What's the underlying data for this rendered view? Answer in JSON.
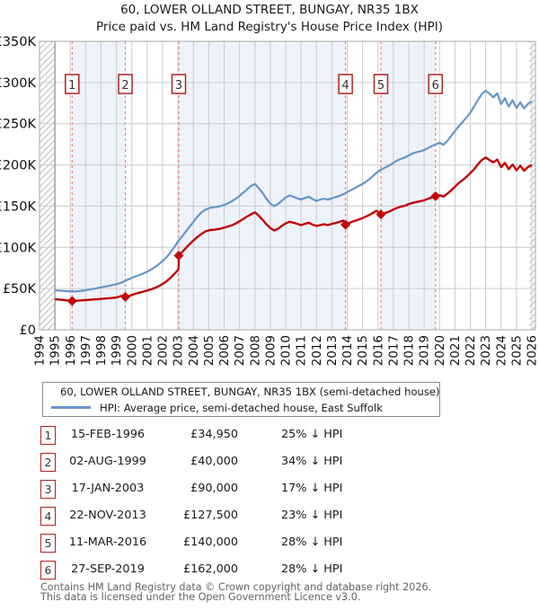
{
  "title": {
    "line1": "60, LOWER OLLAND STREET, BUNGAY, NR35 1BX",
    "line2": "Price paid vs. HM Land Registry's House Price Index (HPI)"
  },
  "legend": {
    "items": [
      {
        "label": "60, LOWER OLLAND STREET, BUNGAY, NR35 1BX (semi-detached house)",
        "color": "#c00505"
      },
      {
        "label": "HPI: Average price, semi-detached house, East Suffolk",
        "color": "#6695c8"
      }
    ]
  },
  "footer": {
    "line1": "Contains HM Land Registry data © Crown copyright and database right 2026.",
    "line2": "This data is licensed under the Open Government Licence v3.0."
  },
  "chart_data": {
    "type": "line",
    "title": "60, LOWER OLLAND STREET, BUNGAY, NR35 1BX — Price paid vs. HM Land Registry's House Price Index (HPI)",
    "x_axis": {
      "start_year": 1994,
      "end_year": 2026,
      "tick_interval": 1,
      "label_rotation": -90
    },
    "y_axis": {
      "min": 0,
      "max": 350000,
      "tick_step": 50000,
      "tick_labels": [
        "£0",
        "£50K",
        "£100K",
        "£150K",
        "£200K",
        "£250K",
        "£300K",
        "£350K"
      ]
    },
    "y_unit": "GBP thousands",
    "grid": true,
    "no_data_hatch_years": {
      "left_end": 1995.0,
      "right_start": 2025.85
    },
    "shaded_band_sale_pairs": [
      [
        1,
        2
      ],
      [
        3,
        4
      ],
      [
        5,
        6
      ]
    ],
    "colors": {
      "property_line": "#c00505",
      "hpi_line": "#6695c8",
      "sale_dash_line": "#f08080",
      "band_fill": "#eef2fb",
      "grid_line": "#cccccc",
      "plot_border": "#aaaaaa",
      "hatch_line": "#bbbbbb",
      "data_start_line": "#808080",
      "num_box_border": "#b22222",
      "num_box_text": "#333333"
    },
    "sales": [
      {
        "n": 1,
        "date": "15-FEB-1996",
        "year": 1996.12,
        "price": 34950,
        "price_label": "£34,950",
        "pct_label": "25% ↓ HPI"
      },
      {
        "n": 2,
        "date": "02-AUG-1999",
        "year": 1999.58,
        "price": 40000,
        "price_label": "£40,000",
        "pct_label": "34% ↓ HPI"
      },
      {
        "n": 3,
        "date": "17-JAN-2003",
        "year": 2003.05,
        "price": 90000,
        "price_label": "£90,000",
        "pct_label": "17% ↓ HPI"
      },
      {
        "n": 4,
        "date": "22-NOV-2013",
        "year": 2013.89,
        "price": 127500,
        "price_label": "£127,500",
        "pct_label": "23% ↓ HPI"
      },
      {
        "n": 5,
        "date": "11-MAR-2016",
        "year": 2016.19,
        "price": 140000,
        "price_label": "£140,000",
        "pct_label": "28% ↓ HPI"
      },
      {
        "n": 6,
        "date": "27-SEP-2019",
        "year": 2019.74,
        "price": 162000,
        "price_label": "£162,000",
        "pct_label": "28% ↓ HPI"
      }
    ],
    "series": [
      {
        "name": "HPI: Average price, semi-detached house, East Suffolk",
        "points": [
          [
            1995.0,
            48
          ],
          [
            1995.25,
            47.6
          ],
          [
            1995.5,
            47.2
          ],
          [
            1995.75,
            46.9
          ],
          [
            1996.0,
            46.6
          ],
          [
            1996.25,
            46.4
          ],
          [
            1996.5,
            46.8
          ],
          [
            1996.75,
            47.3
          ],
          [
            1997.0,
            48.0
          ],
          [
            1997.25,
            48.8
          ],
          [
            1997.5,
            49.6
          ],
          [
            1997.75,
            50.5
          ],
          [
            1998.0,
            51.5
          ],
          [
            1998.25,
            52.4
          ],
          [
            1998.5,
            53.2
          ],
          [
            1998.75,
            54.2
          ],
          [
            1999.0,
            55.3
          ],
          [
            1999.25,
            56.7
          ],
          [
            1999.5,
            58.5
          ],
          [
            1999.75,
            61.0
          ],
          [
            2000.0,
            63.0
          ],
          [
            2000.25,
            64.8
          ],
          [
            2000.5,
            66.5
          ],
          [
            2000.75,
            68.3
          ],
          [
            2001.0,
            70.5
          ],
          [
            2001.25,
            73.0
          ],
          [
            2001.5,
            76.0
          ],
          [
            2001.75,
            79.5
          ],
          [
            2002.0,
            83.5
          ],
          [
            2002.25,
            88.0
          ],
          [
            2002.5,
            93.5
          ],
          [
            2002.75,
            100.0
          ],
          [
            2003.0,
            107.0
          ],
          [
            2003.25,
            113.0
          ],
          [
            2003.5,
            119.0
          ],
          [
            2003.75,
            125.0
          ],
          [
            2004.0,
            131.0
          ],
          [
            2004.25,
            137.0
          ],
          [
            2004.5,
            142.0
          ],
          [
            2004.75,
            145.5
          ],
          [
            2005.0,
            147.5
          ],
          [
            2005.25,
            148.5
          ],
          [
            2005.5,
            149.0
          ],
          [
            2005.75,
            150.0
          ],
          [
            2006.0,
            151.5
          ],
          [
            2006.25,
            153.5
          ],
          [
            2006.5,
            156.0
          ],
          [
            2006.75,
            159.0
          ],
          [
            2007.0,
            162.5
          ],
          [
            2007.25,
            166.5
          ],
          [
            2007.5,
            170.5
          ],
          [
            2007.75,
            174.5
          ],
          [
            2008.0,
            177.0
          ],
          [
            2008.25,
            172.0
          ],
          [
            2008.5,
            166.0
          ],
          [
            2008.75,
            159.0
          ],
          [
            2009.0,
            153.0
          ],
          [
            2009.25,
            150.0
          ],
          [
            2009.5,
            152.5
          ],
          [
            2009.75,
            156.5
          ],
          [
            2010.0,
            160.5
          ],
          [
            2010.25,
            163.0
          ],
          [
            2010.5,
            161.5
          ],
          [
            2010.75,
            159.5
          ],
          [
            2011.0,
            158.0
          ],
          [
            2011.25,
            160.0
          ],
          [
            2011.5,
            161.5
          ],
          [
            2011.75,
            158.5
          ],
          [
            2012.0,
            156.5
          ],
          [
            2012.25,
            158.0
          ],
          [
            2012.5,
            159.0
          ],
          [
            2012.75,
            158.0
          ],
          [
            2013.0,
            159.5
          ],
          [
            2013.25,
            161.0
          ],
          [
            2013.5,
            162.5
          ],
          [
            2013.75,
            164.5
          ],
          [
            2014.0,
            167.0
          ],
          [
            2014.25,
            169.5
          ],
          [
            2014.5,
            172.0
          ],
          [
            2014.75,
            174.5
          ],
          [
            2015.0,
            177.0
          ],
          [
            2015.25,
            180.0
          ],
          [
            2015.5,
            183.5
          ],
          [
            2015.75,
            188.0
          ],
          [
            2016.0,
            192.0
          ],
          [
            2016.25,
            195.0
          ],
          [
            2016.5,
            197.0
          ],
          [
            2016.75,
            199.5
          ],
          [
            2017.0,
            202.5
          ],
          [
            2017.25,
            205.5
          ],
          [
            2017.5,
            207.5
          ],
          [
            2017.75,
            209.0
          ],
          [
            2018.0,
            211.5
          ],
          [
            2018.25,
            214.0
          ],
          [
            2018.5,
            215.5
          ],
          [
            2018.75,
            216.5
          ],
          [
            2019.0,
            218.0
          ],
          [
            2019.25,
            220.5
          ],
          [
            2019.5,
            223.0
          ],
          [
            2019.75,
            225.0
          ],
          [
            2020.0,
            227.0
          ],
          [
            2020.25,
            224.5
          ],
          [
            2020.5,
            229.0
          ],
          [
            2020.75,
            235.0
          ],
          [
            2021.0,
            241.0
          ],
          [
            2021.25,
            247.0
          ],
          [
            2021.5,
            252.0
          ],
          [
            2021.75,
            257.5
          ],
          [
            2022.0,
            263.5
          ],
          [
            2022.25,
            271.0
          ],
          [
            2022.5,
            279.0
          ],
          [
            2022.75,
            286.0
          ],
          [
            2023.0,
            290.0
          ],
          [
            2023.25,
            286.5
          ],
          [
            2023.5,
            282.0
          ],
          [
            2023.75,
            287.0
          ],
          [
            2024.0,
            274.0
          ],
          [
            2024.25,
            281.0
          ],
          [
            2024.5,
            271.0
          ],
          [
            2024.75,
            278.5
          ],
          [
            2025.0,
            269.0
          ],
          [
            2025.25,
            276.0
          ],
          [
            2025.5,
            268.5
          ],
          [
            2025.75,
            274.0
          ],
          [
            2026.0,
            277.5
          ]
        ]
      },
      {
        "name": "60, LOWER OLLAND STREET, BUNGAY, NR35 1BX (semi-detached house)",
        "points": [
          [
            1995.0,
            37.0
          ],
          [
            1995.3,
            36.6
          ],
          [
            1995.6,
            36.1
          ],
          [
            1995.9,
            35.4
          ],
          [
            1996.12,
            34.95
          ],
          [
            1996.4,
            35.2
          ],
          [
            1996.7,
            35.6
          ],
          [
            1997.0,
            36.0
          ],
          [
            1997.3,
            36.4
          ],
          [
            1997.6,
            36.9
          ],
          [
            1998.0,
            37.4
          ],
          [
            1998.3,
            37.9
          ],
          [
            1998.6,
            38.4
          ],
          [
            1999.0,
            39.1
          ],
          [
            1999.3,
            41.0
          ],
          [
            1999.58,
            40.0
          ],
          [
            1999.85,
            41.3
          ],
          [
            2000.1,
            42.8
          ],
          [
            2000.4,
            44.6
          ],
          [
            2000.7,
            46.0
          ],
          [
            2001.0,
            47.6
          ],
          [
            2001.3,
            49.4
          ],
          [
            2001.6,
            51.6
          ],
          [
            2001.9,
            54.4
          ],
          [
            2002.2,
            58.0
          ],
          [
            2002.5,
            62.8
          ],
          [
            2002.8,
            68.5
          ],
          [
            2003.0,
            72.5
          ],
          [
            2003.04,
            74.0
          ],
          [
            2003.05,
            90.0
          ],
          [
            2003.3,
            95.0
          ],
          [
            2003.6,
            101.0
          ],
          [
            2003.9,
            106.5
          ],
          [
            2004.2,
            111.5
          ],
          [
            2004.5,
            116.0
          ],
          [
            2004.8,
            119.5
          ],
          [
            2005.1,
            121.0
          ],
          [
            2005.4,
            121.5
          ],
          [
            2005.7,
            122.5
          ],
          [
            2006.0,
            124.0
          ],
          [
            2006.3,
            125.5
          ],
          [
            2006.6,
            127.5
          ],
          [
            2006.9,
            130.5
          ],
          [
            2007.2,
            134.0
          ],
          [
            2007.5,
            137.5
          ],
          [
            2007.8,
            140.5
          ],
          [
            2008.0,
            142.5
          ],
          [
            2008.25,
            138.5
          ],
          [
            2008.5,
            133.5
          ],
          [
            2008.75,
            128.0
          ],
          [
            2009.0,
            123.5
          ],
          [
            2009.25,
            120.5
          ],
          [
            2009.5,
            122.5
          ],
          [
            2009.75,
            126.0
          ],
          [
            2010.0,
            129.0
          ],
          [
            2010.25,
            131.0
          ],
          [
            2010.5,
            130.0
          ],
          [
            2010.75,
            128.5
          ],
          [
            2011.0,
            127.0
          ],
          [
            2011.25,
            128.5
          ],
          [
            2011.5,
            130.0
          ],
          [
            2011.75,
            127.5
          ],
          [
            2012.0,
            126.0
          ],
          [
            2012.25,
            127.0
          ],
          [
            2012.5,
            128.0
          ],
          [
            2012.75,
            127.0
          ],
          [
            2013.0,
            128.5
          ],
          [
            2013.25,
            129.5
          ],
          [
            2013.5,
            131.0
          ],
          [
            2013.75,
            132.5
          ],
          [
            2013.89,
            127.5
          ],
          [
            2014.1,
            129.5
          ],
          [
            2014.4,
            131.5
          ],
          [
            2014.7,
            133.5
          ],
          [
            2015.0,
            135.5
          ],
          [
            2015.3,
            138.0
          ],
          [
            2015.6,
            141.0
          ],
          [
            2015.9,
            144.5
          ],
          [
            2016.19,
            140.0
          ],
          [
            2016.5,
            142.0
          ],
          [
            2016.75,
            143.5
          ],
          [
            2017.0,
            146.0
          ],
          [
            2017.25,
            148.0
          ],
          [
            2017.5,
            149.5
          ],
          [
            2017.75,
            150.5
          ],
          [
            2018.0,
            152.5
          ],
          [
            2018.25,
            154.0
          ],
          [
            2018.5,
            155.0
          ],
          [
            2018.75,
            156.0
          ],
          [
            2019.0,
            157.0
          ],
          [
            2019.25,
            159.0
          ],
          [
            2019.5,
            160.5
          ],
          [
            2019.74,
            162.0
          ],
          [
            2020.0,
            163.5
          ],
          [
            2020.25,
            161.5
          ],
          [
            2020.5,
            165.0
          ],
          [
            2020.75,
            169.0
          ],
          [
            2021.0,
            173.5
          ],
          [
            2021.25,
            178.0
          ],
          [
            2021.5,
            181.5
          ],
          [
            2021.75,
            185.5
          ],
          [
            2022.0,
            190.0
          ],
          [
            2022.25,
            195.0
          ],
          [
            2022.5,
            201.0
          ],
          [
            2022.75,
            206.0
          ],
          [
            2023.0,
            209.0
          ],
          [
            2023.25,
            206.0
          ],
          [
            2023.5,
            203.0
          ],
          [
            2023.75,
            206.5
          ],
          [
            2024.0,
            197.5
          ],
          [
            2024.25,
            202.5
          ],
          [
            2024.5,
            195.0
          ],
          [
            2024.75,
            200.5
          ],
          [
            2025.0,
            193.5
          ],
          [
            2025.25,
            199.0
          ],
          [
            2025.5,
            193.0
          ],
          [
            2025.75,
            197.5
          ],
          [
            2026.0,
            200.0
          ]
        ]
      }
    ]
  }
}
